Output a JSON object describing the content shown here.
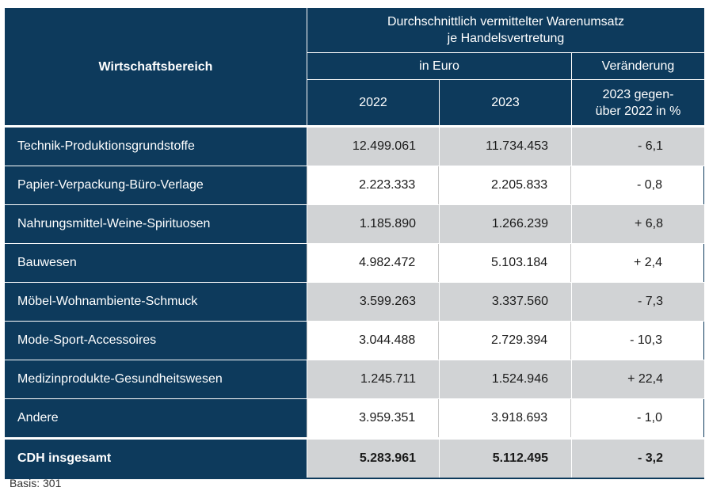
{
  "header": {
    "col_sector": "Wirtschaftsbereich",
    "group_title_line1": "Durchschnittlich vermittelter Warenumsatz",
    "group_title_line2": "je Handelsvertretung",
    "sub_euro": "in Euro",
    "sub_change": "Veränderung",
    "year1": "2022",
    "year2": "2023",
    "change_line1": "2023 gegen-",
    "change_line2": "über 2022 in %"
  },
  "rows": [
    {
      "sector": "Technik-Produktionsgrundstoffe",
      "v2022": "12.499.061",
      "v2023": "11.734.453",
      "change": "- 6,1"
    },
    {
      "sector": "Papier-Verpackung-Büro-Verlage",
      "v2022": "2.223.333",
      "v2023": "2.205.833",
      "change": "- 0,8"
    },
    {
      "sector": "Nahrungsmittel-Weine-Spirituosen",
      "v2022": "1.185.890",
      "v2023": "1.266.239",
      "change": "+ 6,8"
    },
    {
      "sector": "Bauwesen",
      "v2022": "4.982.472",
      "v2023": "5.103.184",
      "change": "+ 2,4"
    },
    {
      "sector": "Möbel-Wohnambiente-Schmuck",
      "v2022": "3.599.263",
      "v2023": "3.337.560",
      "change": "- 7,3"
    },
    {
      "sector": "Mode-Sport-Accessoires",
      "v2022": "3.044.488",
      "v2023": "2.729.394",
      "change": "- 10,3"
    },
    {
      "sector": "Medizinprodukte-Gesundheitswesen",
      "v2022": "1.245.711",
      "v2023": "1.524.946",
      "change": "+ 22,4"
    },
    {
      "sector": "Andere",
      "v2022": "3.959.351",
      "v2023": "3.918.693",
      "change": "- 1,0"
    }
  ],
  "total": {
    "sector": "CDH insgesamt",
    "v2022": "5.283.961",
    "v2023": "5.112.495",
    "change": "- 3,2"
  },
  "footnote": "Basis: 301",
  "colors": {
    "header_bg": "#0d3a5c",
    "gray_row": "#d1d3d5",
    "white_row": "#ffffff"
  }
}
